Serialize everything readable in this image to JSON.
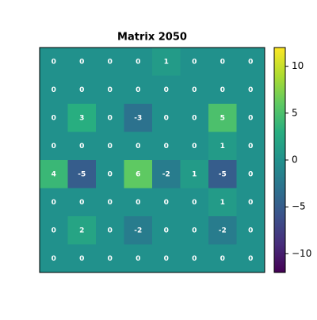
{
  "chart_data": {
    "type": "heatmap",
    "title": "Matrix 2050",
    "z": [
      [
        0,
        0,
        0,
        0,
        1,
        0,
        0,
        0
      ],
      [
        0,
        0,
        0,
        0,
        0,
        0,
        0,
        0
      ],
      [
        0,
        3,
        0,
        -3,
        0,
        0,
        5,
        0
      ],
      [
        0,
        0,
        0,
        0,
        0,
        0,
        1,
        0
      ],
      [
        4,
        -5,
        0,
        6,
        -2,
        1,
        -5,
        0
      ],
      [
        0,
        0,
        0,
        0,
        0,
        0,
        1,
        0
      ],
      [
        0,
        2,
        0,
        -2,
        0,
        0,
        -2,
        0
      ],
      [
        0,
        0,
        0,
        0,
        0,
        0,
        0,
        0
      ]
    ],
    "colormap": "viridis",
    "zlim": [
      -12,
      12
    ],
    "colorbar_ticks": [
      {
        "value": -10,
        "label": "−10"
      },
      {
        "value": -5,
        "label": "−5"
      },
      0,
      5,
      10
    ]
  }
}
